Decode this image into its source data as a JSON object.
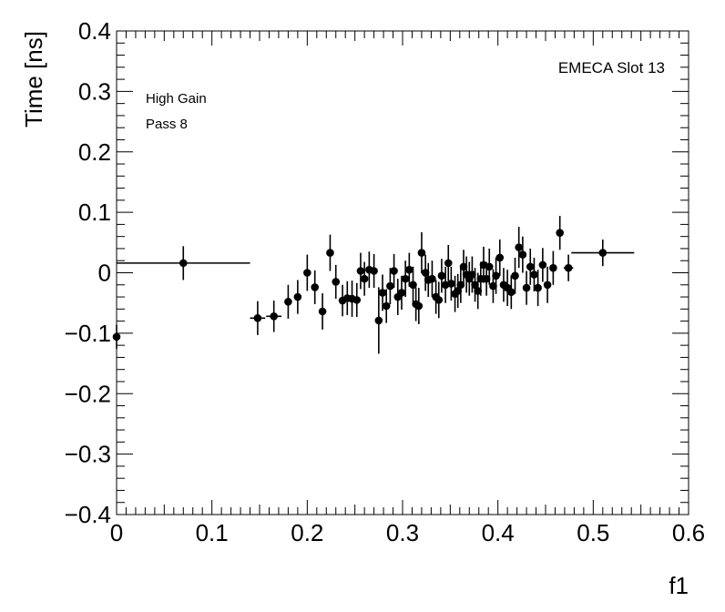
{
  "chart_data": {
    "type": "scatter",
    "xlabel": "f1",
    "ylabel": "Time [ns]",
    "xlim": [
      0,
      0.6
    ],
    "ylim": [
      -0.4,
      0.4
    ],
    "xticks": [
      0,
      0.1,
      0.2,
      0.3,
      0.4,
      0.5,
      0.6
    ],
    "xtick_labels": [
      "0",
      "0.1",
      "0.2",
      "0.3",
      "0.4",
      "0.5",
      "0.6"
    ],
    "yticks": [
      -0.4,
      -0.3,
      -0.2,
      -0.1,
      0,
      0.1,
      0.2,
      0.3,
      0.4
    ],
    "ytick_labels": [
      "−0.4",
      "−0.3",
      "−0.2",
      "−0.1",
      "0",
      "0.1",
      "0.2",
      "0.3",
      "0.4"
    ],
    "annotations": {
      "top_right": "EMECA Slot 13",
      "line1": "High Gain",
      "line2": "Pass 8"
    },
    "grid": false,
    "marker_color": "#000000",
    "points": [
      {
        "x": 0.0,
        "y": -0.106,
        "xerr": 0.0,
        "yerr": 0.02
      },
      {
        "x": 0.07,
        "y": 0.016,
        "xerr": 0.07,
        "yerr": 0.028
      },
      {
        "x": 0.148,
        "y": -0.075,
        "xerr": 0.008,
        "yerr": 0.028
      },
      {
        "x": 0.165,
        "y": -0.072,
        "xerr": 0.008,
        "yerr": 0.026
      },
      {
        "x": 0.18,
        "y": -0.048,
        "xerr": 0.0,
        "yerr": 0.028
      },
      {
        "x": 0.19,
        "y": -0.04,
        "xerr": 0.0,
        "yerr": 0.028
      },
      {
        "x": 0.2,
        "y": 0.0,
        "xerr": 0.0,
        "yerr": 0.03
      },
      {
        "x": 0.208,
        "y": -0.024,
        "xerr": 0.0,
        "yerr": 0.028
      },
      {
        "x": 0.216,
        "y": -0.064,
        "xerr": 0.0,
        "yerr": 0.03
      },
      {
        "x": 0.224,
        "y": 0.033,
        "xerr": 0.0,
        "yerr": 0.03
      },
      {
        "x": 0.23,
        "y": -0.015,
        "xerr": 0.0,
        "yerr": 0.028
      },
      {
        "x": 0.237,
        "y": -0.046,
        "xerr": 0.0,
        "yerr": 0.026
      },
      {
        "x": 0.242,
        "y": -0.042,
        "xerr": 0.0,
        "yerr": 0.028
      },
      {
        "x": 0.247,
        "y": -0.043,
        "xerr": 0.0,
        "yerr": 0.03
      },
      {
        "x": 0.252,
        "y": -0.045,
        "xerr": 0.0,
        "yerr": 0.028
      },
      {
        "x": 0.256,
        "y": 0.003,
        "xerr": 0.0,
        "yerr": 0.03
      },
      {
        "x": 0.26,
        "y": -0.01,
        "xerr": 0.0,
        "yerr": 0.028
      },
      {
        "x": 0.265,
        "y": 0.005,
        "xerr": 0.0,
        "yerr": 0.03
      },
      {
        "x": 0.27,
        "y": 0.003,
        "xerr": 0.0,
        "yerr": 0.028
      },
      {
        "x": 0.275,
        "y": -0.079,
        "xerr": 0.0,
        "yerr": 0.055
      },
      {
        "x": 0.279,
        "y": -0.033,
        "xerr": 0.0,
        "yerr": 0.03
      },
      {
        "x": 0.283,
        "y": -0.055,
        "xerr": 0.0,
        "yerr": 0.028
      },
      {
        "x": 0.287,
        "y": -0.022,
        "xerr": 0.0,
        "yerr": 0.03
      },
      {
        "x": 0.291,
        "y": 0.003,
        "xerr": 0.0,
        "yerr": 0.028
      },
      {
        "x": 0.295,
        "y": -0.04,
        "xerr": 0.0,
        "yerr": 0.03
      },
      {
        "x": 0.299,
        "y": -0.033,
        "xerr": 0.0,
        "yerr": 0.028
      },
      {
        "x": 0.303,
        "y": -0.01,
        "xerr": 0.0,
        "yerr": 0.03
      },
      {
        "x": 0.307,
        "y": 0.005,
        "xerr": 0.0,
        "yerr": 0.028
      },
      {
        "x": 0.311,
        "y": -0.02,
        "xerr": 0.0,
        "yerr": 0.03
      },
      {
        "x": 0.314,
        "y": -0.052,
        "xerr": 0.0,
        "yerr": 0.028
      },
      {
        "x": 0.317,
        "y": -0.055,
        "xerr": 0.0,
        "yerr": 0.03
      },
      {
        "x": 0.32,
        "y": 0.033,
        "xerr": 0.0,
        "yerr": 0.034
      },
      {
        "x": 0.324,
        "y": 0.0,
        "xerr": 0.0,
        "yerr": 0.03
      },
      {
        "x": 0.327,
        "y": -0.012,
        "xerr": 0.0,
        "yerr": 0.028
      },
      {
        "x": 0.331,
        "y": -0.01,
        "xerr": 0.0,
        "yerr": 0.03
      },
      {
        "x": 0.335,
        "y": -0.04,
        "xerr": 0.0,
        "yerr": 0.028
      },
      {
        "x": 0.338,
        "y": -0.045,
        "xerr": 0.0,
        "yerr": 0.03
      },
      {
        "x": 0.341,
        "y": -0.005,
        "xerr": 0.0,
        "yerr": 0.028
      },
      {
        "x": 0.345,
        "y": -0.02,
        "xerr": 0.0,
        "yerr": 0.03
      },
      {
        "x": 0.348,
        "y": 0.016,
        "xerr": 0.0,
        "yerr": 0.03
      },
      {
        "x": 0.351,
        "y": -0.018,
        "xerr": 0.0,
        "yerr": 0.028
      },
      {
        "x": 0.355,
        "y": -0.035,
        "xerr": 0.0,
        "yerr": 0.03
      },
      {
        "x": 0.358,
        "y": -0.03,
        "xerr": 0.0,
        "yerr": 0.028
      },
      {
        "x": 0.361,
        "y": -0.02,
        "xerr": 0.0,
        "yerr": 0.03
      },
      {
        "x": 0.364,
        "y": 0.01,
        "xerr": 0.0,
        "yerr": 0.028
      },
      {
        "x": 0.367,
        "y": -0.003,
        "xerr": 0.0,
        "yerr": 0.03
      },
      {
        "x": 0.37,
        "y": -0.01,
        "xerr": 0.0,
        "yerr": 0.028
      },
      {
        "x": 0.373,
        "y": -0.003,
        "xerr": 0.0,
        "yerr": 0.03
      },
      {
        "x": 0.376,
        "y": -0.02,
        "xerr": 0.0,
        "yerr": 0.028
      },
      {
        "x": 0.379,
        "y": -0.03,
        "xerr": 0.0,
        "yerr": 0.03
      },
      {
        "x": 0.382,
        "y": -0.01,
        "xerr": 0.0,
        "yerr": 0.028
      },
      {
        "x": 0.385,
        "y": 0.013,
        "xerr": 0.0,
        "yerr": 0.03
      },
      {
        "x": 0.388,
        "y": -0.01,
        "xerr": 0.0,
        "yerr": 0.028
      },
      {
        "x": 0.391,
        "y": 0.01,
        "xerr": 0.0,
        "yerr": 0.03
      },
      {
        "x": 0.395,
        "y": -0.022,
        "xerr": 0.0,
        "yerr": 0.028
      },
      {
        "x": 0.398,
        "y": -0.005,
        "xerr": 0.0,
        "yerr": 0.03
      },
      {
        "x": 0.402,
        "y": 0.025,
        "xerr": 0.0,
        "yerr": 0.03
      },
      {
        "x": 0.406,
        "y": -0.02,
        "xerr": 0.0,
        "yerr": 0.028
      },
      {
        "x": 0.41,
        "y": -0.025,
        "xerr": 0.0,
        "yerr": 0.03
      },
      {
        "x": 0.414,
        "y": -0.032,
        "xerr": 0.0,
        "yerr": 0.028
      },
      {
        "x": 0.418,
        "y": -0.005,
        "xerr": 0.0,
        "yerr": 0.03
      },
      {
        "x": 0.422,
        "y": 0.042,
        "xerr": 0.0,
        "yerr": 0.034
      },
      {
        "x": 0.426,
        "y": 0.03,
        "xerr": 0.0,
        "yerr": 0.03
      },
      {
        "x": 0.43,
        "y": -0.025,
        "xerr": 0.0,
        "yerr": 0.028
      },
      {
        "x": 0.434,
        "y": 0.01,
        "xerr": 0.0,
        "yerr": 0.03
      },
      {
        "x": 0.438,
        "y": -0.003,
        "xerr": 0.0,
        "yerr": 0.028
      },
      {
        "x": 0.442,
        "y": -0.025,
        "xerr": 0.0,
        "yerr": 0.03
      },
      {
        "x": 0.447,
        "y": 0.013,
        "xerr": 0.0,
        "yerr": 0.028
      },
      {
        "x": 0.452,
        "y": -0.02,
        "xerr": 0.0,
        "yerr": 0.03
      },
      {
        "x": 0.458,
        "y": 0.008,
        "xerr": 0.0,
        "yerr": 0.028
      },
      {
        "x": 0.465,
        "y": 0.066,
        "xerr": 0.0,
        "yerr": 0.028
      },
      {
        "x": 0.474,
        "y": 0.008,
        "xerr": 0.005,
        "yerr": 0.022
      },
      {
        "x": 0.51,
        "y": 0.033,
        "xerr": 0.033,
        "yerr": 0.022
      }
    ]
  }
}
